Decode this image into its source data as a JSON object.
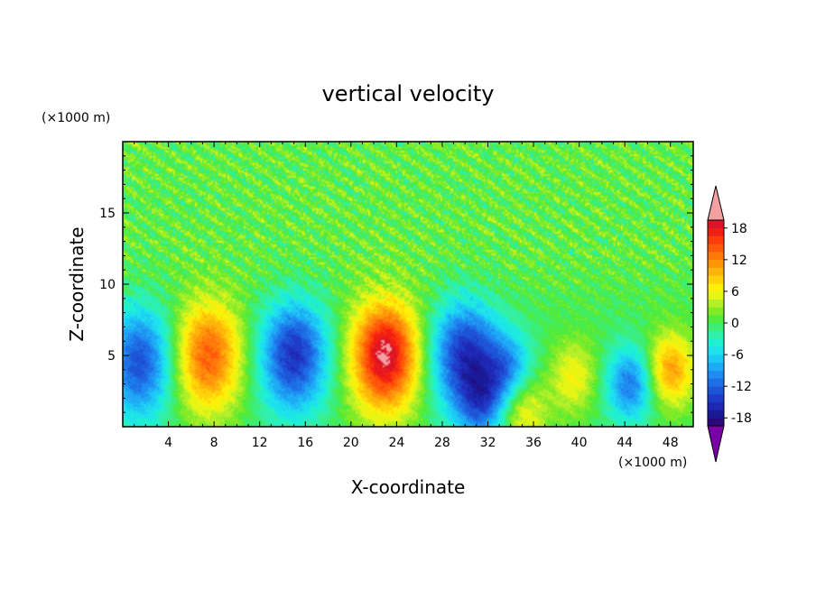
{
  "chart_data": {
    "type": "heatmap",
    "title": "vertical velocity",
    "xlabel": "X-coordinate",
    "ylabel": "Z-coordinate",
    "x_unit": "(×1000 m)",
    "y_unit": "(×1000 m)",
    "xlim": [
      0,
      50
    ],
    "ylim": [
      0,
      20
    ],
    "x_ticks": [
      "4",
      "8",
      "12",
      "16",
      "20",
      "24",
      "28",
      "32",
      "36",
      "40",
      "44",
      "48"
    ],
    "x_tick_values": [
      4,
      8,
      12,
      16,
      20,
      24,
      28,
      32,
      36,
      40,
      44,
      48
    ],
    "y_ticks": [
      "5",
      "10",
      "15"
    ],
    "y_tick_values": [
      5,
      10,
      15
    ],
    "colorbar": {
      "tick_labels": [
        "18",
        "12",
        "6",
        "0",
        "-6",
        "-12",
        "-18"
      ],
      "tick_values": [
        18,
        12,
        6,
        0,
        -6,
        -12,
        -18
      ],
      "levels": [
        -21,
        -19.5,
        -18,
        -16.5,
        -15,
        -13.5,
        -12,
        -10.5,
        -9,
        -7.5,
        -6,
        -4.5,
        -3,
        -1.5,
        0,
        1.5,
        3,
        4.5,
        6,
        7.5,
        9,
        10.5,
        12,
        13.5,
        15,
        16.5,
        18,
        19.5,
        21
      ],
      "colors": [
        "#7a00a8",
        "#2a0a7a",
        "#1a1a96",
        "#1e28b4",
        "#1e3cc8",
        "#1e55d7",
        "#1e6ee6",
        "#1e8cf0",
        "#1eaaf5",
        "#1ec8f5",
        "#1ee1ee",
        "#1ef0d2",
        "#32f0aa",
        "#3cee78",
        "#50eb3c",
        "#82eb28",
        "#b4f028",
        "#e6f514",
        "#fff00a",
        "#ffd20a",
        "#ffb40a",
        "#ff960a",
        "#ff780a",
        "#ff5a0a",
        "#ff3c0a",
        "#f01e14",
        "#dc1428",
        "#f5a0a0"
      ],
      "extend": "both"
    },
    "features": [
      {
        "label": "downdraft",
        "x": 1.5,
        "z": 4.5,
        "peak": -13
      },
      {
        "label": "updraft",
        "x": 7.5,
        "z": 5.0,
        "peak": 14
      },
      {
        "label": "downdraft",
        "x": 15.0,
        "z": 5.0,
        "peak": -15
      },
      {
        "label": "updraft",
        "x": 23.0,
        "z": 5.0,
        "peak": 20
      },
      {
        "label": "downdraft",
        "x": 30.0,
        "z": 5.0,
        "peak": -15
      },
      {
        "label": "downdraft",
        "x": 33.8,
        "z": 4.0,
        "peak": -9
      },
      {
        "label": "downdraft",
        "x": 31.5,
        "z": 1.5,
        "peak": -9
      },
      {
        "label": "updraft",
        "x": 35.0,
        "z": 1.2,
        "peak": 7
      },
      {
        "label": "updraft",
        "x": 39.5,
        "z": 3.5,
        "peak": 6
      },
      {
        "label": "downdraft",
        "x": 44.5,
        "z": 3.0,
        "peak": -11
      },
      {
        "label": "updraft",
        "x": 48.0,
        "z": 4.0,
        "peak": 11
      }
    ]
  }
}
